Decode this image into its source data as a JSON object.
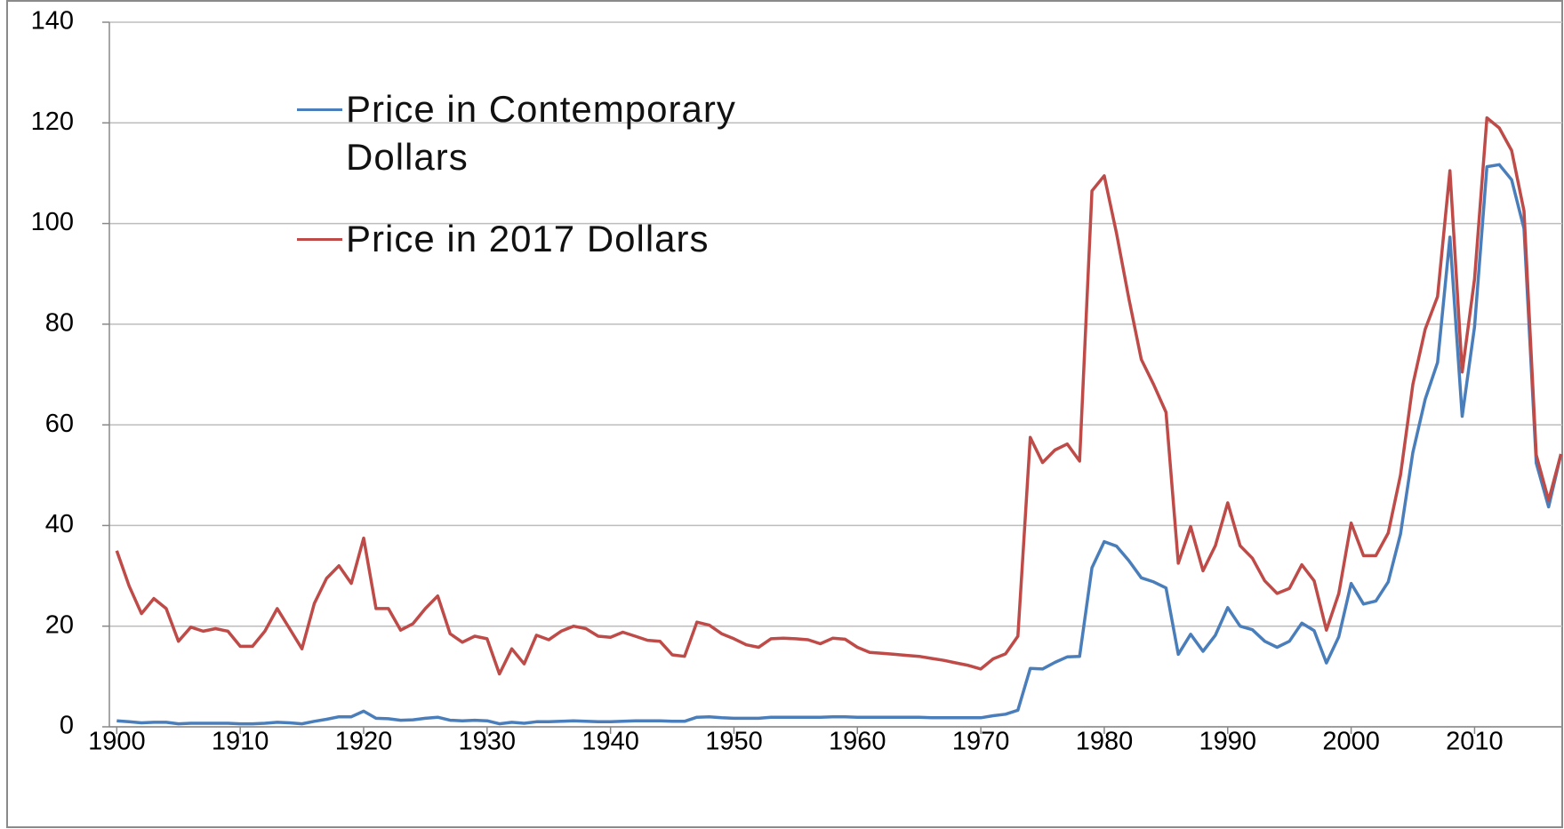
{
  "chart_data": {
    "type": "line",
    "x": [
      1900,
      1901,
      1902,
      1903,
      1904,
      1905,
      1906,
      1907,
      1908,
      1909,
      1910,
      1911,
      1912,
      1913,
      1914,
      1915,
      1916,
      1917,
      1918,
      1919,
      1920,
      1921,
      1922,
      1923,
      1924,
      1925,
      1926,
      1927,
      1928,
      1929,
      1930,
      1931,
      1932,
      1933,
      1934,
      1935,
      1936,
      1937,
      1938,
      1939,
      1940,
      1941,
      1942,
      1943,
      1944,
      1945,
      1946,
      1947,
      1948,
      1949,
      1950,
      1951,
      1952,
      1953,
      1954,
      1955,
      1956,
      1957,
      1958,
      1959,
      1960,
      1961,
      1962,
      1963,
      1964,
      1965,
      1966,
      1967,
      1968,
      1969,
      1970,
      1971,
      1972,
      1973,
      1974,
      1975,
      1976,
      1977,
      1978,
      1979,
      1980,
      1981,
      1982,
      1983,
      1984,
      1985,
      1986,
      1987,
      1988,
      1989,
      1990,
      1991,
      1992,
      1993,
      1994,
      1995,
      1996,
      1997,
      1998,
      1999,
      2000,
      2001,
      2002,
      2003,
      2004,
      2005,
      2006,
      2007,
      2008,
      2009,
      2010,
      2011,
      2012,
      2013,
      2014,
      2015,
      2016,
      2017
    ],
    "series": [
      {
        "name": "Price in Contemporary Dollars",
        "color": "#4a7ebb",
        "values": [
          1.2,
          1,
          0.8,
          0.9,
          0.9,
          0.6,
          0.7,
          0.7,
          0.7,
          0.7,
          0.6,
          0.6,
          0.7,
          0.9,
          0.8,
          0.6,
          1.1,
          1.5,
          2,
          2,
          3.1,
          1.7,
          1.6,
          1.3,
          1.4,
          1.7,
          1.9,
          1.3,
          1.2,
          1.3,
          1.2,
          0.6,
          0.9,
          0.7,
          1,
          1,
          1.1,
          1.2,
          1.1,
          1,
          1,
          1.1,
          1.2,
          1.2,
          1.2,
          1.1,
          1.1,
          1.9,
          2,
          1.8,
          1.7,
          1.7,
          1.7,
          1.9,
          1.9,
          1.9,
          1.9,
          1.9,
          2,
          2,
          1.9,
          1.9,
          1.9,
          1.9,
          1.9,
          1.9,
          1.8,
          1.8,
          1.8,
          1.8,
          1.8,
          2.2,
          2.5,
          3.3,
          11.6,
          11.5,
          12.8,
          13.9,
          14,
          31.6,
          36.8,
          35.9,
          33,
          29.6,
          28.8,
          27.6,
          14.4,
          18.4,
          15,
          18.2,
          23.7,
          20,
          19.3,
          17,
          15.8,
          17,
          20.6,
          19.1,
          12.7,
          17.9,
          28.5,
          24.4,
          25,
          28.8,
          38.3,
          54.5,
          65.1,
          72.4,
          97.3,
          61.7,
          79.5,
          111.3,
          111.7,
          108.7,
          99,
          52.4,
          43.7,
          54.2
        ]
      },
      {
        "name": "Price in 2017 Dollars",
        "color": "#be4b48",
        "values": [
          35,
          28,
          22.5,
          25.5,
          23.5,
          17,
          19.8,
          19,
          19.5,
          19,
          16,
          16,
          19,
          23.5,
          19.5,
          15.5,
          24.5,
          29.5,
          32,
          28.5,
          37.5,
          23.5,
          23.5,
          19.2,
          20.5,
          23.5,
          26,
          18.5,
          16.8,
          18,
          17.5,
          10.5,
          15.5,
          12.5,
          18.2,
          17.3,
          19,
          20,
          19.5,
          18,
          17.8,
          18.8,
          18,
          17.2,
          17,
          14.3,
          14,
          20.8,
          20.2,
          18.5,
          17.5,
          16.3,
          15.8,
          17.5,
          17.6,
          17.5,
          17.3,
          16.5,
          17.6,
          17.4,
          15.8,
          14.8,
          14.6,
          14.4,
          14.2,
          14,
          13.6,
          13.2,
          12.7,
          12.2,
          11.5,
          13.5,
          14.5,
          18,
          57.5,
          52.5,
          55,
          56.2,
          52.8,
          106.5,
          109.5,
          98,
          85,
          73,
          68,
          62.5,
          32.5,
          39.8,
          31,
          36,
          44.5,
          36,
          33.5,
          29,
          26.5,
          27.5,
          32.2,
          29,
          19.2,
          26.5,
          40.5,
          34,
          34,
          38.5,
          50,
          68,
          79,
          85.5,
          110.5,
          70.5,
          89,
          121,
          119,
          114.5,
          102.5,
          54,
          45,
          54.2
        ]
      }
    ],
    "xlim": [
      1899.4,
      2017.1
    ],
    "xticks": [
      1900,
      1910,
      1920,
      1930,
      1940,
      1950,
      1960,
      1970,
      1980,
      1990,
      2000,
      2010
    ],
    "ylim": [
      0,
      140
    ],
    "yticks": [
      0,
      20,
      40,
      60,
      80,
      100,
      120,
      140
    ],
    "grid": true,
    "legend": "upper left"
  }
}
